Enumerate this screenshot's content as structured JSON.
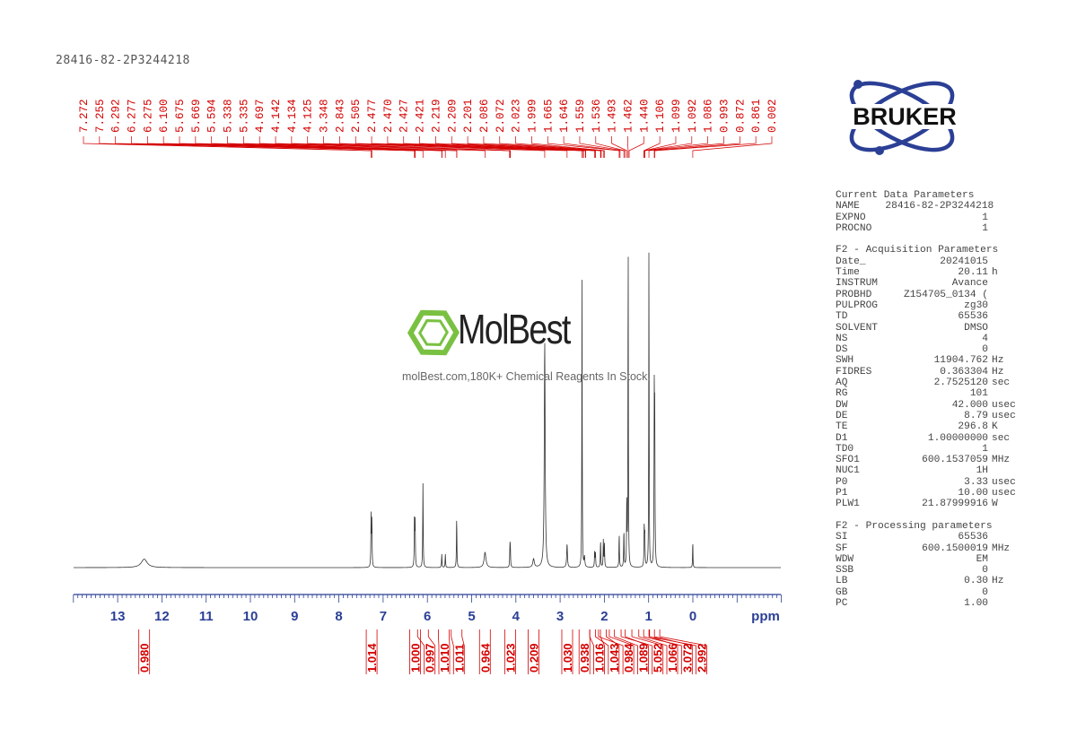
{
  "title": "28416-82-2P3244218",
  "logo": {
    "brand": "BRUKER",
    "color": "#2b3f95"
  },
  "watermark": {
    "name": "MolBest",
    "subtitle": "molBest.com,180K+ Chemical Reagents In Stock.",
    "color": "#7ac142"
  },
  "parameters": {
    "current_header": "Current Data Parameters",
    "current": [
      [
        "NAME",
        "28416-82-2P3244218",
        ""
      ],
      [
        "EXPNO",
        "1",
        ""
      ],
      [
        "PROCNO",
        "1",
        ""
      ]
    ],
    "acq_header": "F2 - Acquisition Parameters",
    "acq": [
      [
        "Date_",
        "20241015",
        ""
      ],
      [
        "Time",
        "20.11",
        "h"
      ],
      [
        "INSTRUM",
        "Avance",
        ""
      ],
      [
        "PROBHD",
        "Z154705_0134 (",
        ""
      ],
      [
        "PULPROG",
        "zg30",
        ""
      ],
      [
        "TD",
        "65536",
        ""
      ],
      [
        "SOLVENT",
        "DMSO",
        ""
      ],
      [
        "NS",
        "4",
        ""
      ],
      [
        "DS",
        "0",
        ""
      ],
      [
        "SWH",
        "11904.762",
        "Hz"
      ],
      [
        "FIDRES",
        "0.363304",
        "Hz"
      ],
      [
        "AQ",
        "2.7525120",
        "sec"
      ],
      [
        "RG",
        "101",
        ""
      ],
      [
        "DW",
        "42.000",
        "usec"
      ],
      [
        "DE",
        "8.79",
        "usec"
      ],
      [
        "TE",
        "296.8",
        "K"
      ],
      [
        "D1",
        "1.00000000",
        "sec"
      ],
      [
        "TD0",
        "1",
        ""
      ],
      [
        "SFO1",
        "600.1537059",
        "MHz"
      ],
      [
        "NUC1",
        "1H",
        ""
      ],
      [
        "P0",
        "3.33",
        "usec"
      ],
      [
        "P1",
        "10.00",
        "usec"
      ],
      [
        "PLW1",
        "21.87999916",
        "W"
      ]
    ],
    "proc_header": "F2 - Processing parameters",
    "proc": [
      [
        "SI",
        "65536",
        ""
      ],
      [
        "SF",
        "600.1500019",
        "MHz"
      ],
      [
        "WDW",
        "EM",
        ""
      ],
      [
        "SSB",
        "0",
        ""
      ],
      [
        "LB",
        "0.30",
        "Hz"
      ],
      [
        "GB",
        "0",
        ""
      ],
      [
        "PC",
        "1.00",
        ""
      ]
    ]
  },
  "chart_data": {
    "type": "line",
    "title": "28416-82-2P3244218",
    "xlabel": "ppm",
    "xlim": [
      14,
      -2
    ],
    "x_ticks": [
      13,
      12,
      11,
      10,
      9,
      8,
      7,
      6,
      5,
      4,
      3,
      2,
      1,
      0
    ],
    "x_reversed": true,
    "spectrum_color": "#333333",
    "annotation_color": "#d40000",
    "peak_labels": [
      "7.272",
      "7.255",
      "6.292",
      "6.277",
      "6.275",
      "6.100",
      "5.675",
      "5.669",
      "5.594",
      "5.338",
      "5.335",
      "4.697",
      "4.142",
      "4.134",
      "4.125",
      "3.348",
      "2.843",
      "2.505",
      "2.477",
      "2.470",
      "2.427",
      "2.421",
      "2.219",
      "2.209",
      "2.201",
      "2.086",
      "2.072",
      "2.023",
      "1.999",
      "1.665",
      "1.646",
      "1.559",
      "1.536",
      "1.493",
      "1.462",
      "1.440",
      "1.106",
      "1.099",
      "1.092",
      "1.086",
      "0.993",
      "0.872",
      "0.861",
      "0.002"
    ],
    "peaks": [
      {
        "ppm": 12.4,
        "intensity": 2.5,
        "width": 0.08
      },
      {
        "ppm": 7.272,
        "intensity": 15,
        "width": 0.006
      },
      {
        "ppm": 7.255,
        "intensity": 14,
        "width": 0.006
      },
      {
        "ppm": 6.292,
        "intensity": 14,
        "width": 0.006
      },
      {
        "ppm": 6.277,
        "intensity": 13,
        "width": 0.006
      },
      {
        "ppm": 6.1,
        "intensity": 25,
        "width": 0.006
      },
      {
        "ppm": 5.675,
        "intensity": 4,
        "width": 0.006
      },
      {
        "ppm": 5.594,
        "intensity": 4,
        "width": 0.006
      },
      {
        "ppm": 5.338,
        "intensity": 15,
        "width": 0.006
      },
      {
        "ppm": 4.697,
        "intensity": 4.5,
        "width": 0.025
      },
      {
        "ppm": 4.134,
        "intensity": 6,
        "width": 0.006
      },
      {
        "ppm": 4.125,
        "intensity": 5,
        "width": 0.006
      },
      {
        "ppm": 3.6,
        "intensity": 2.5,
        "width": 0.02
      },
      {
        "ppm": 3.348,
        "intensity": 67,
        "width": 0.012
      },
      {
        "ppm": 2.843,
        "intensity": 7,
        "width": 0.01
      },
      {
        "ppm": 2.505,
        "intensity": 85,
        "width": 0.005
      },
      {
        "ppm": 2.45,
        "intensity": 3,
        "width": 0.01
      },
      {
        "ppm": 2.219,
        "intensity": 5,
        "width": 0.006
      },
      {
        "ppm": 2.201,
        "intensity": 4,
        "width": 0.006
      },
      {
        "ppm": 2.086,
        "intensity": 8,
        "width": 0.006
      },
      {
        "ppm": 2.023,
        "intensity": 8,
        "width": 0.006
      },
      {
        "ppm": 1.999,
        "intensity": 7,
        "width": 0.006
      },
      {
        "ppm": 1.665,
        "intensity": 10,
        "width": 0.006
      },
      {
        "ppm": 1.559,
        "intensity": 11,
        "width": 0.006
      },
      {
        "ppm": 1.493,
        "intensity": 20,
        "width": 0.006
      },
      {
        "ppm": 1.462,
        "intensity": 100,
        "width": 0.005
      },
      {
        "ppm": 1.099,
        "intensity": 12,
        "width": 0.006
      },
      {
        "ppm": 1.086,
        "intensity": 9,
        "width": 0.006
      },
      {
        "ppm": 0.993,
        "intensity": 96,
        "width": 0.005
      },
      {
        "ppm": 0.872,
        "intensity": 48,
        "width": 0.006
      },
      {
        "ppm": 0.861,
        "intensity": 40,
        "width": 0.006
      },
      {
        "ppm": 0.002,
        "intensity": 8,
        "width": 0.005
      }
    ],
    "integrals": [
      {
        "ppm": 12.4,
        "value": "0.980"
      },
      {
        "ppm": 7.26,
        "value": "1.014"
      },
      {
        "ppm": 6.28,
        "value": "1.000"
      },
      {
        "ppm": 6.1,
        "value": "0.997"
      },
      {
        "ppm": 5.63,
        "value": "1.010"
      },
      {
        "ppm": 5.34,
        "value": "1.011"
      },
      {
        "ppm": 4.7,
        "value": "0.964"
      },
      {
        "ppm": 4.13,
        "value": "1.023"
      },
      {
        "ppm": 3.6,
        "value": "0.209"
      },
      {
        "ppm": 2.84,
        "value": "1.030"
      },
      {
        "ppm": 2.45,
        "value": "0.938"
      },
      {
        "ppm": 2.21,
        "value": "1.016"
      },
      {
        "ppm": 2.08,
        "value": "1.043"
      },
      {
        "ppm": 2.01,
        "value": "0.984"
      },
      {
        "ppm": 1.65,
        "value": "1.089"
      },
      {
        "ppm": 1.5,
        "value": "5.052"
      },
      {
        "ppm": 1.1,
        "value": "1.066"
      },
      {
        "ppm": 0.99,
        "value": "3.072"
      },
      {
        "ppm": 0.87,
        "value": "2.992"
      }
    ]
  }
}
